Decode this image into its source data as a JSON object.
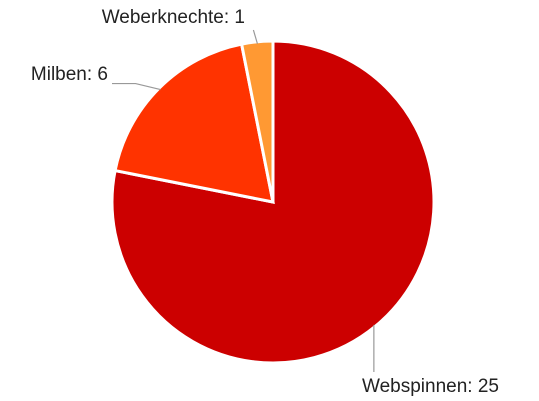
{
  "chart_data": {
    "type": "pie",
    "values": [
      25,
      6,
      1
    ],
    "value_labels": [
      "Webspinnen: 25",
      "Milben: 6",
      "Weberknechte: 1"
    ],
    "colors": [
      "#cc0000",
      "#ff3300",
      "#ff9933"
    ]
  }
}
